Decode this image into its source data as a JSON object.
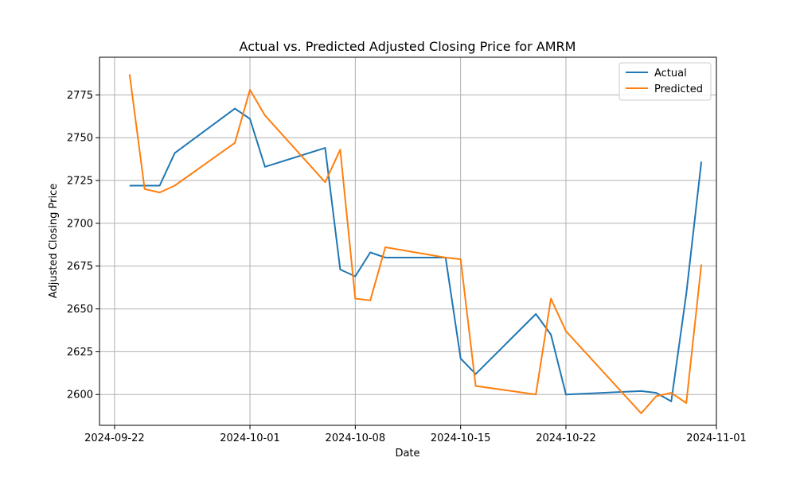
{
  "chart_data": {
    "type": "line",
    "title": "Actual vs. Predicted Adjusted Closing Price for AMRM",
    "xlabel": "Date",
    "ylabel": "Adjusted Closing Price",
    "x_type": "date",
    "xlim": [
      "2024-09-21",
      "2024-11-01"
    ],
    "ylim": [
      2582,
      2797
    ],
    "x_ticks": [
      "2024-09-22",
      "2024-10-01",
      "2024-10-08",
      "2024-10-15",
      "2024-10-22",
      "2024-11-01"
    ],
    "y_ticks": [
      2600,
      2625,
      2650,
      2675,
      2700,
      2725,
      2750,
      2775
    ],
    "grid": true,
    "legend": "top-right",
    "series": [
      {
        "name": "Actual",
        "color": "#1f77b4",
        "points": [
          [
            "2024-09-23",
            2722
          ],
          [
            "2024-09-24",
            2722
          ],
          [
            "2024-09-25",
            2722
          ],
          [
            "2024-09-26",
            2741
          ],
          [
            "2024-09-30",
            2767
          ],
          [
            "2024-10-01",
            2761
          ],
          [
            "2024-10-02",
            2733
          ],
          [
            "2024-10-06",
            2744
          ],
          [
            "2024-10-07",
            2673
          ],
          [
            "2024-10-08",
            2669
          ],
          [
            "2024-10-09",
            2683
          ],
          [
            "2024-10-10",
            2680
          ],
          [
            "2024-10-14",
            2680
          ],
          [
            "2024-10-15",
            2621
          ],
          [
            "2024-10-16",
            2612
          ],
          [
            "2024-10-20",
            2647
          ],
          [
            "2024-10-21",
            2635
          ],
          [
            "2024-10-22",
            2600
          ],
          [
            "2024-10-27",
            2602
          ],
          [
            "2024-10-28",
            2601
          ],
          [
            "2024-10-29",
            2596
          ],
          [
            "2024-10-30",
            2659
          ],
          [
            "2024-10-31",
            2736
          ]
        ]
      },
      {
        "name": "Predicted",
        "color": "#ff7f0e",
        "points": [
          [
            "2024-09-23",
            2787
          ],
          [
            "2024-09-24",
            2720
          ],
          [
            "2024-09-25",
            2718
          ],
          [
            "2024-09-26",
            2722
          ],
          [
            "2024-09-30",
            2747
          ],
          [
            "2024-10-01",
            2778
          ],
          [
            "2024-10-02",
            2763
          ],
          [
            "2024-10-06",
            2724
          ],
          [
            "2024-10-07",
            2743
          ],
          [
            "2024-10-08",
            2656
          ],
          [
            "2024-10-09",
            2655
          ],
          [
            "2024-10-10",
            2686
          ],
          [
            "2024-10-14",
            2680
          ],
          [
            "2024-10-15",
            2679
          ],
          [
            "2024-10-16",
            2605
          ],
          [
            "2024-10-20",
            2600
          ],
          [
            "2024-10-21",
            2656
          ],
          [
            "2024-10-22",
            2637
          ],
          [
            "2024-10-27",
            2589
          ],
          [
            "2024-10-28",
            2599
          ],
          [
            "2024-10-29",
            2601
          ],
          [
            "2024-10-30",
            2595
          ],
          [
            "2024-10-31",
            2676
          ]
        ]
      }
    ]
  }
}
